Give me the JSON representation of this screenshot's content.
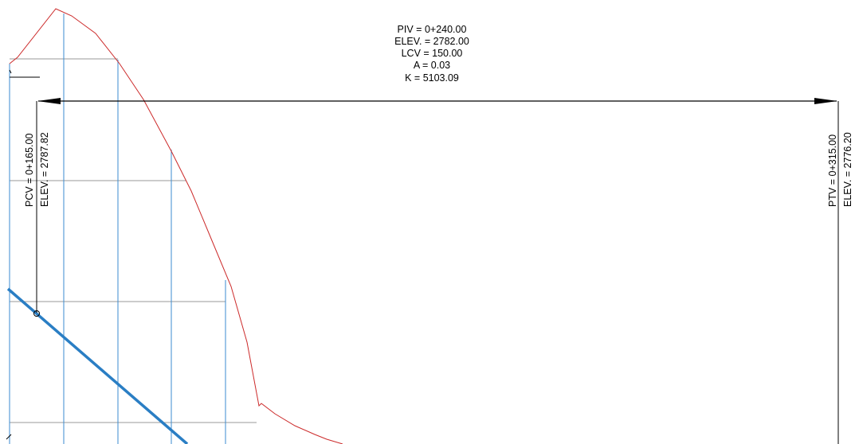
{
  "curve": {
    "piv_label": "PIV = 0+240.00",
    "elev_label": "ELEV. = 2782.00",
    "lcv_label": "LCV = 150.00",
    "a_label": "A = 0.03",
    "k_label": "K = 5103.09"
  },
  "pcv": {
    "station_label": "PCV = 0+165.00",
    "elev_label": "ELEV. = 2787.82"
  },
  "ptv": {
    "station_label": "PTV = 0+315.00",
    "elev_label": "ELEV. = 2776.20"
  },
  "colors": {
    "terrain": "#cc2a2a",
    "grade": "#2a7ec4",
    "grid_blue": "#3b8bd0",
    "grid_gray": "#9a9a9a",
    "ink": "#000000"
  }
}
